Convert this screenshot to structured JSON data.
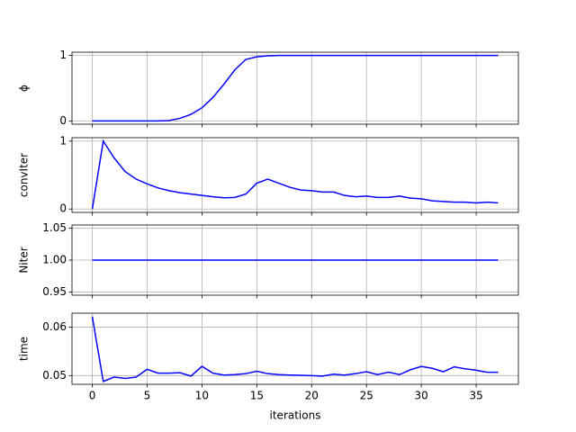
{
  "chart_data": [
    {
      "type": "line",
      "ylabel": "ϕ",
      "x": [
        0,
        1,
        2,
        3,
        4,
        5,
        6,
        7,
        8,
        9,
        10,
        11,
        12,
        13,
        14,
        15,
        16,
        17,
        18,
        19,
        20,
        21,
        22,
        23,
        24,
        25,
        26,
        27,
        28,
        29,
        30,
        31,
        32,
        33,
        34,
        35,
        36,
        37
      ],
      "series": [
        {
          "color": "#0000ff",
          "values": [
            0,
            0,
            0,
            0,
            0,
            0,
            0,
            0.005,
            0.04,
            0.1,
            0.2,
            0.36,
            0.56,
            0.78,
            0.94,
            0.98,
            0.995,
            1,
            1,
            1,
            1,
            1,
            1,
            1,
            1,
            1,
            1,
            1,
            1,
            1,
            1,
            1,
            1,
            1,
            1,
            1,
            1,
            1
          ]
        }
      ],
      "xlim": [
        -1.85,
        38.85
      ],
      "xticks": [
        0,
        5,
        10,
        15,
        20,
        25,
        30,
        35
      ],
      "ylim": [
        -0.05,
        1.05
      ],
      "yticks": [
        0,
        1
      ],
      "grid": true
    },
    {
      "type": "line",
      "ylabel": "convIter",
      "x": [
        0,
        1,
        2,
        3,
        4,
        5,
        6,
        7,
        8,
        9,
        10,
        11,
        12,
        13,
        14,
        15,
        16,
        17,
        18,
        19,
        20,
        21,
        22,
        23,
        24,
        25,
        26,
        27,
        28,
        29,
        30,
        31,
        32,
        33,
        34,
        35,
        36,
        37
      ],
      "series": [
        {
          "color": "#0000ff",
          "values": [
            0,
            1,
            0.75,
            0.55,
            0.44,
            0.37,
            0.31,
            0.27,
            0.24,
            0.22,
            0.2,
            0.18,
            0.165,
            0.17,
            0.22,
            0.38,
            0.44,
            0.38,
            0.32,
            0.28,
            0.27,
            0.25,
            0.25,
            0.2,
            0.18,
            0.19,
            0.17,
            0.17,
            0.19,
            0.16,
            0.15,
            0.12,
            0.11,
            0.1,
            0.1,
            0.09,
            0.1,
            0.09
          ]
        }
      ],
      "xlim": [
        -1.85,
        38.85
      ],
      "xticks": [
        0,
        5,
        10,
        15,
        20,
        25,
        30,
        35
      ],
      "ylim": [
        -0.05,
        1.05
      ],
      "yticks": [
        0,
        1
      ],
      "grid": true
    },
    {
      "type": "line",
      "ylabel": "Niter",
      "x": [
        0,
        1,
        2,
        3,
        4,
        5,
        6,
        7,
        8,
        9,
        10,
        11,
        12,
        13,
        14,
        15,
        16,
        17,
        18,
        19,
        20,
        21,
        22,
        23,
        24,
        25,
        26,
        27,
        28,
        29,
        30,
        31,
        32,
        33,
        34,
        35,
        36,
        37
      ],
      "series": [
        {
          "color": "#0000ff",
          "values": [
            1,
            1,
            1,
            1,
            1,
            1,
            1,
            1,
            1,
            1,
            1,
            1,
            1,
            1,
            1,
            1,
            1,
            1,
            1,
            1,
            1,
            1,
            1,
            1,
            1,
            1,
            1,
            1,
            1,
            1,
            1,
            1,
            1,
            1,
            1,
            1,
            1,
            1
          ]
        }
      ],
      "xlim": [
        -1.85,
        38.85
      ],
      "xticks": [
        0,
        5,
        10,
        15,
        20,
        25,
        30,
        35
      ],
      "ylim": [
        0.945,
        1.055
      ],
      "yticks": [
        {
          "value": 0.95,
          "label": "0.95"
        },
        {
          "value": 1,
          "label": "1.00"
        },
        {
          "value": 1.05,
          "label": "1.05"
        }
      ],
      "grid": true
    },
    {
      "type": "line",
      "ylabel": "time",
      "xlabel": "iterations",
      "x": [
        0,
        1,
        2,
        3,
        4,
        5,
        6,
        7,
        8,
        9,
        10,
        11,
        12,
        13,
        14,
        15,
        16,
        17,
        18,
        19,
        20,
        21,
        22,
        23,
        24,
        25,
        26,
        27,
        28,
        29,
        30,
        31,
        32,
        33,
        34,
        35,
        36,
        37
      ],
      "series": [
        {
          "color": "#0000ff",
          "values": [
            0.0622,
            0.0488,
            0.0497,
            0.0494,
            0.0497,
            0.0513,
            0.0505,
            0.0505,
            0.0506,
            0.0499,
            0.0519,
            0.0505,
            0.0501,
            0.0502,
            0.0504,
            0.0509,
            0.0504,
            0.0502,
            0.0501,
            0.05005,
            0.05,
            0.0499,
            0.0503,
            0.0501,
            0.0504,
            0.0508,
            0.0502,
            0.0507,
            0.0502,
            0.0512,
            0.0519,
            0.0515,
            0.0508,
            0.0518,
            0.0514,
            0.0511,
            0.0507,
            0.0507
          ]
        }
      ],
      "xlim": [
        -1.85,
        38.85
      ],
      "xticks": [
        0,
        5,
        10,
        15,
        20,
        25,
        30,
        35
      ],
      "ylim": [
        0.0482,
        0.0629
      ],
      "yticks": [
        0.05,
        0.06
      ],
      "grid": true
    }
  ]
}
